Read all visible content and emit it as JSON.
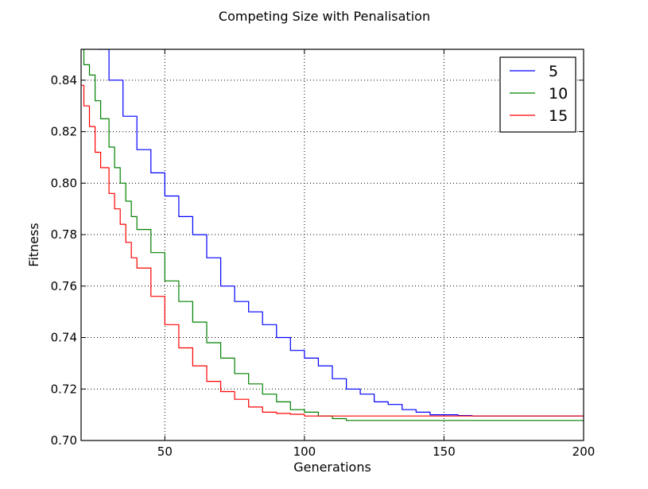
{
  "chart_data": {
    "type": "line",
    "title": "Competing Size with Penalisation",
    "xlabel": "Generations",
    "ylabel": "Fitness",
    "xlim": [
      20,
      200
    ],
    "ylim": [
      0.7,
      0.852
    ],
    "xticks": [
      50,
      100,
      150,
      200
    ],
    "yticks": [
      0.7,
      0.72,
      0.74,
      0.76,
      0.78,
      0.8,
      0.82,
      0.84
    ],
    "xtick_labels": [
      "50",
      "100",
      "150",
      "200"
    ],
    "ytick_labels": [
      "0.70",
      "0.72",
      "0.74",
      "0.76",
      "0.78",
      "0.80",
      "0.82",
      "0.84"
    ],
    "grid": true,
    "legend_position": "top-right",
    "series": [
      {
        "name": "5",
        "color": "#0000ff",
        "x": [
          26,
          30,
          35,
          40,
          45,
          50,
          55,
          60,
          65,
          70,
          75,
          80,
          85,
          90,
          95,
          100,
          105,
          110,
          115,
          120,
          125,
          130,
          135,
          140,
          145,
          150,
          155,
          160,
          170,
          180,
          190,
          200
        ],
        "y": [
          0.852,
          0.84,
          0.826,
          0.813,
          0.804,
          0.795,
          0.787,
          0.78,
          0.771,
          0.76,
          0.754,
          0.75,
          0.745,
          0.74,
          0.735,
          0.732,
          0.729,
          0.724,
          0.72,
          0.718,
          0.715,
          0.714,
          0.712,
          0.711,
          0.71,
          0.71,
          0.7097,
          0.7095,
          0.7095,
          0.7095,
          0.7095,
          0.7095
        ]
      },
      {
        "name": "10",
        "color": "#008000",
        "x": [
          20,
          21,
          23,
          25,
          27,
          30,
          32,
          34,
          36,
          38,
          40,
          45,
          50,
          55,
          60,
          65,
          70,
          75,
          80,
          85,
          90,
          95,
          100,
          105,
          110,
          115,
          120,
          130,
          140,
          150,
          160,
          170,
          180,
          190,
          200
        ],
        "y": [
          0.852,
          0.846,
          0.842,
          0.832,
          0.825,
          0.814,
          0.806,
          0.8,
          0.793,
          0.787,
          0.782,
          0.773,
          0.762,
          0.754,
          0.746,
          0.738,
          0.732,
          0.726,
          0.722,
          0.718,
          0.715,
          0.712,
          0.711,
          0.7095,
          0.7085,
          0.7078,
          0.7078,
          0.7078,
          0.7078,
          0.7078,
          0.7078,
          0.7078,
          0.7078,
          0.7078,
          0.7078
        ]
      },
      {
        "name": "15",
        "color": "#ff0000",
        "x": [
          20,
          21,
          23,
          25,
          27,
          30,
          32,
          34,
          36,
          38,
          40,
          45,
          50,
          55,
          60,
          65,
          70,
          75,
          80,
          85,
          90,
          95,
          100,
          110,
          120,
          130,
          140,
          150,
          160,
          170,
          180,
          190,
          200
        ],
        "y": [
          0.838,
          0.83,
          0.822,
          0.812,
          0.806,
          0.796,
          0.79,
          0.784,
          0.777,
          0.771,
          0.767,
          0.756,
          0.745,
          0.736,
          0.729,
          0.723,
          0.719,
          0.716,
          0.713,
          0.711,
          0.7105,
          0.7102,
          0.7095,
          0.7095,
          0.7095,
          0.7095,
          0.7095,
          0.7095,
          0.7095,
          0.7095,
          0.7095,
          0.7095,
          0.7095
        ]
      }
    ]
  }
}
